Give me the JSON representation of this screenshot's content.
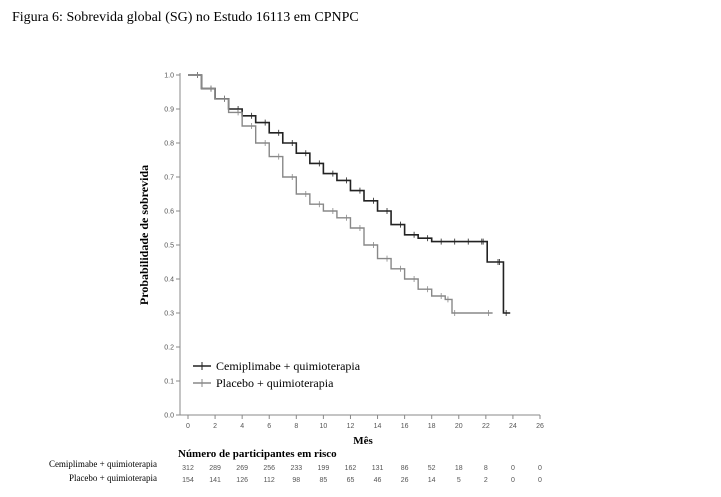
{
  "figure_title": "Figura 6: Sobrevida global (SG) no Estudo 16113 em CPNPC",
  "chart_data": {
    "type": "line",
    "title": "Figura 6: Sobrevida global (SG) no Estudo 16113 em CPNPC",
    "xlabel": "Mês",
    "ylabel": "Probabilidade de sobrevida",
    "xlim": [
      0,
      26
    ],
    "ylim": [
      0.0,
      1.0
    ],
    "x_ticks": [
      0,
      2,
      4,
      6,
      8,
      10,
      12,
      14,
      16,
      18,
      20,
      22,
      24,
      26
    ],
    "y_ticks": [
      "0.0",
      "0.1",
      "0.2",
      "0.3",
      "0.4",
      "0.5",
      "0.6",
      "0.7",
      "0.8",
      "0.9",
      "1.0"
    ],
    "grid": false,
    "legend_position": "lower-left",
    "series": [
      {
        "name": "Cemiplimabe + quimioterapia",
        "color": "#222222",
        "x": [
          0,
          1,
          2,
          3,
          4,
          5,
          6,
          7,
          8,
          9,
          10,
          11,
          12,
          13,
          14,
          15,
          16,
          17,
          18,
          19,
          20,
          21,
          22,
          22.1,
          23.2,
          23.3,
          23.8
        ],
        "y": [
          1.0,
          0.96,
          0.93,
          0.9,
          0.88,
          0.86,
          0.83,
          0.8,
          0.77,
          0.74,
          0.71,
          0.69,
          0.66,
          0.63,
          0.6,
          0.56,
          0.53,
          0.52,
          0.51,
          0.51,
          0.51,
          0.51,
          0.51,
          0.45,
          0.45,
          0.3,
          0.3
        ]
      },
      {
        "name": "Placebo + quimioterapia",
        "color": "#888888",
        "x": [
          0,
          1,
          2,
          3,
          4,
          5,
          6,
          7,
          8,
          9,
          10,
          11,
          12,
          13,
          14,
          15,
          16,
          17,
          18,
          19,
          19.5,
          20,
          22.5
        ],
        "y": [
          1.0,
          0.96,
          0.93,
          0.89,
          0.85,
          0.8,
          0.76,
          0.7,
          0.65,
          0.62,
          0.6,
          0.58,
          0.55,
          0.5,
          0.46,
          0.43,
          0.4,
          0.37,
          0.35,
          0.34,
          0.3,
          0.3,
          0.3
        ]
      }
    ],
    "risk_table": {
      "title": "Número de participantes em risco",
      "rows": [
        {
          "label": "Cemiplimabe + quimioterapia",
          "values": [
            "312",
            "289",
            "269",
            "256",
            "233",
            "199",
            "162",
            "131",
            "86",
            "52",
            "18",
            "8",
            "0",
            "0"
          ]
        },
        {
          "label": "Placebo + quimioterapia",
          "values": [
            "154",
            "141",
            "126",
            "112",
            "98",
            "85",
            "65",
            "46",
            "26",
            "14",
            "5",
            "2",
            "0",
            "0"
          ]
        }
      ]
    }
  }
}
